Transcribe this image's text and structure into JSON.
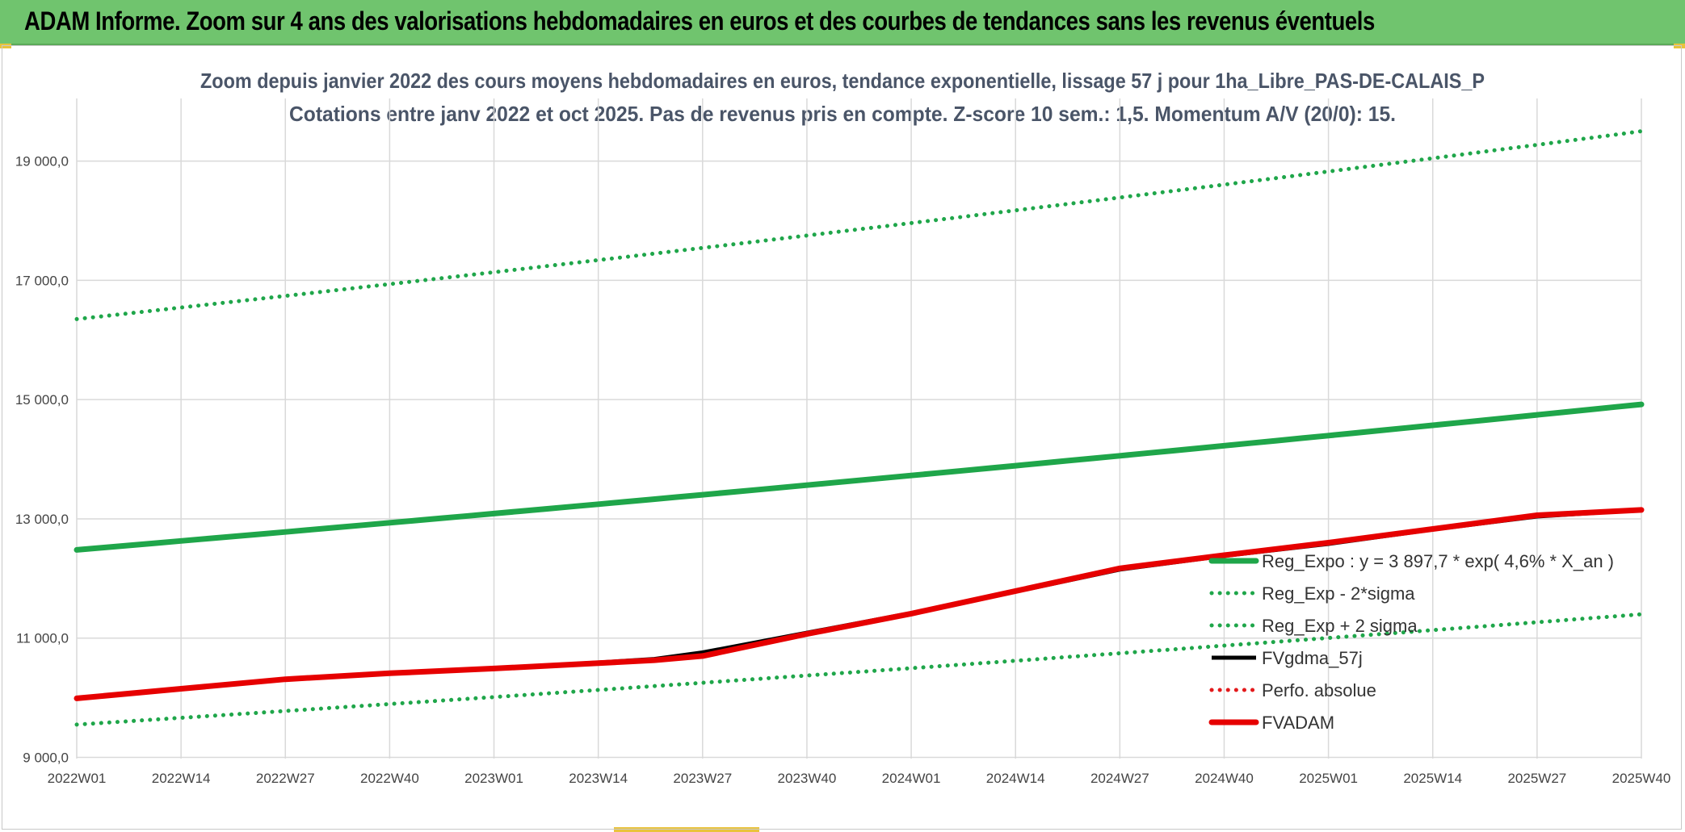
{
  "banner": {
    "title": "ADAM Informe. Zoom sur 4 ans des valorisations hebdomadaires en euros et des courbes de tendances sans les revenus éventuels"
  },
  "colors": {
    "banner_bg": "#70c46e",
    "reg_expo": "#1fa64a",
    "sigma": "#1fa64a",
    "fvgdma": "#000000",
    "perfo": "#e31a1c",
    "fvadam": "#e60000",
    "grid": "#d9d9d9"
  },
  "chart_data": {
    "type": "line",
    "title_line1": "Zoom depuis janvier 2022 des cours moyens hebdomadaires en euros, tendance exponentielle, lissage 57 j pour 1ha_Libre_PAS-DE-CALAIS_P",
    "title_line2": "Cotations entre janv 2022 et oct 2025. Pas de revenus pris en compte. Z-score 10 sem.: 1,5. Momentum A/V (20/0): 15.",
    "x_tick_labels": [
      "2022W01",
      "2022W14",
      "2022W27",
      "2022W40",
      "2023W01",
      "2023W14",
      "2023W27",
      "2023W40",
      "2024W01",
      "2024W14",
      "2024W27",
      "2024W40",
      "2025W01",
      "2025W14",
      "2025W27",
      "2025W40"
    ],
    "x_range": [
      0,
      195
    ],
    "y_ticks": [
      9000,
      11000,
      13000,
      15000,
      17000,
      19000
    ],
    "y_tick_labels": [
      "9 000,0",
      "11 000,0",
      "13 000,0",
      "15 000,0",
      "17 000,0",
      "19 000,0"
    ],
    "ylim": [
      8980,
      20050
    ],
    "series": [
      {
        "name": "Reg_Expo : y = 3 897,7 * exp( 4,6% *  X_an )",
        "style": "solid-thick",
        "color": "#1fa64a",
        "x": [
          0,
          195
        ],
        "y": [
          12480,
          14920
        ],
        "curve": "exp"
      },
      {
        "name": "Reg_Exp - 2*sigma",
        "style": "dotted",
        "color": "#1fa64a",
        "x": [
          0,
          195
        ],
        "y": [
          16350,
          19500
        ],
        "curve": "exp"
      },
      {
        "name": "Reg_Exp + 2 sigma",
        "style": "dotted",
        "color": "#1fa64a",
        "x": [
          0,
          195
        ],
        "y": [
          9550,
          11400
        ],
        "curve": "exp"
      },
      {
        "name": "FVgdma_57j",
        "style": "solid",
        "color": "#000000",
        "x": [
          0,
          13,
          26,
          39,
          52,
          65,
          72,
          78,
          91,
          104,
          117,
          130,
          143,
          156,
          169,
          182,
          195
        ],
        "y": [
          9990,
          10150,
          10310,
          10410,
          10490,
          10590,
          10650,
          10760,
          11090,
          11420,
          11780,
          12150,
          12380,
          12580,
          12820,
          13040,
          13150
        ]
      },
      {
        "name": "Perfo. absolue",
        "style": "dotted",
        "color": "#e31a1c",
        "x": [],
        "y": []
      },
      {
        "name": "FVADAM",
        "style": "solid-thick",
        "color": "#e60000",
        "x": [
          0,
          13,
          26,
          39,
          52,
          65,
          72,
          78,
          91,
          104,
          117,
          130,
          143,
          156,
          169,
          182,
          195
        ],
        "y": [
          9990,
          10150,
          10310,
          10410,
          10490,
          10580,
          10630,
          10700,
          11070,
          11410,
          11790,
          12170,
          12390,
          12600,
          12830,
          13060,
          13150
        ]
      }
    ],
    "legend_position": "right-center"
  }
}
